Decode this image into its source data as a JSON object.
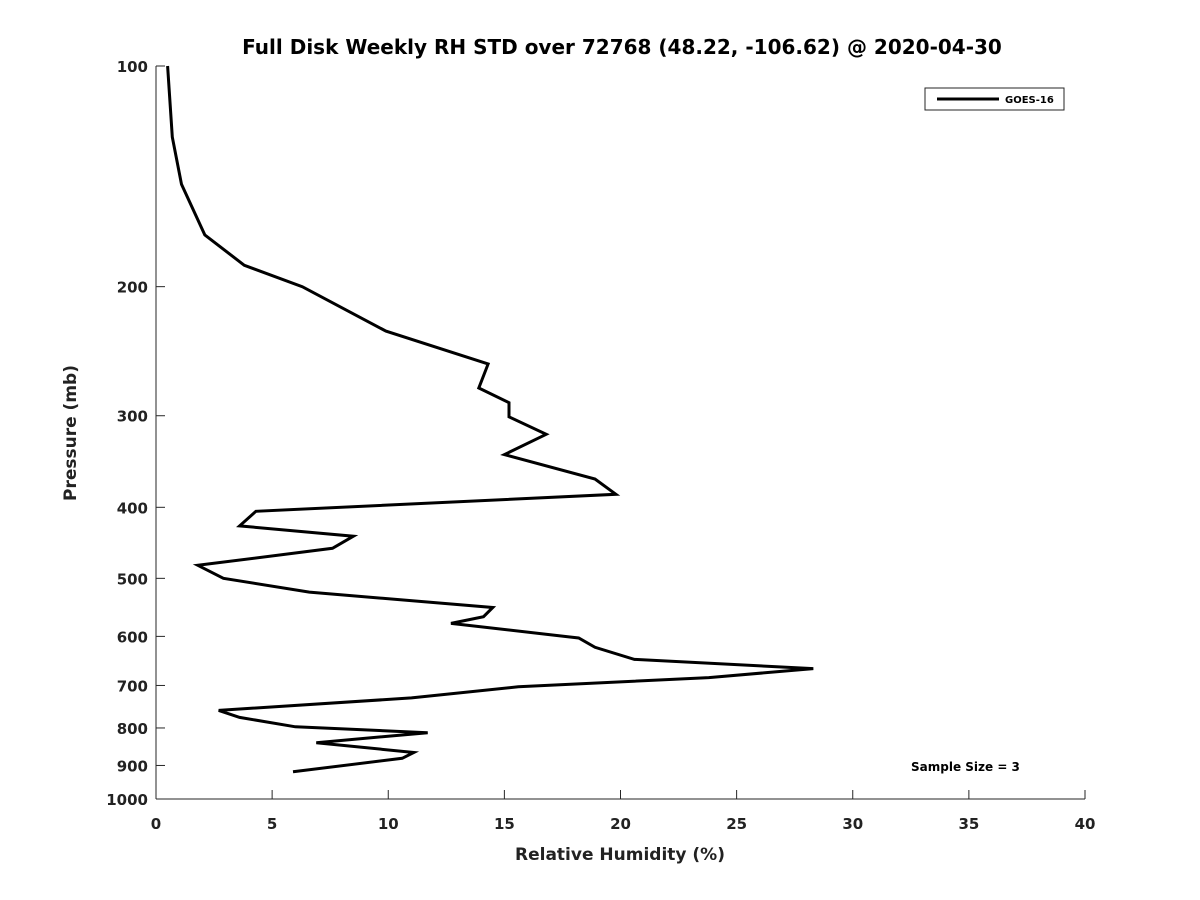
{
  "chart_data": {
    "type": "line",
    "title": "Full Disk Weekly RH STD over 72768 (48.22, -106.62) @ 2020-04-30",
    "xlabel": "Relative Humidity (%)",
    "ylabel": "Pressure (mb)",
    "xlim": [
      0,
      40
    ],
    "ylim": [
      100,
      1000
    ],
    "y_scale": "log",
    "y_reversed": true,
    "grid": false,
    "x_ticks": [
      0,
      5,
      10,
      15,
      20,
      25,
      30,
      35,
      40
    ],
    "y_ticks": [
      100,
      200,
      300,
      400,
      500,
      600,
      700,
      800,
      900,
      1000
    ],
    "legend": {
      "position": "top-right",
      "entries": [
        "GOES-16"
      ]
    },
    "annotation": "Sample Size = 3",
    "series": [
      {
        "name": "GOES-16",
        "color": "#000000",
        "x": [
          0.5,
          0.7,
          1.1,
          2.1,
          3.8,
          6.3,
          9.9,
          14.3,
          13.9,
          15.2,
          15.2,
          16.8,
          15.0,
          18.9,
          19.8,
          4.3,
          3.6,
          8.5,
          7.6,
          1.8,
          2.9,
          6.6,
          14.5,
          14.1,
          12.7,
          18.2,
          18.9,
          20.6,
          28.3,
          23.8,
          15.6,
          11.0,
          2.7,
          3.6,
          6.0,
          11.7,
          6.9,
          11.1,
          10.6,
          5.9
        ],
        "y": [
          100,
          125,
          145,
          170,
          187,
          200,
          230,
          255,
          275,
          288,
          301,
          318,
          339,
          366,
          384,
          405,
          424,
          438,
          455,
          480,
          500,
          522,
          548,
          564,
          576,
          603,
          621,
          645,
          664,
          683,
          703,
          728,
          757,
          774,
          797,
          812,
          838,
          864,
          880,
          918
        ]
      }
    ]
  }
}
